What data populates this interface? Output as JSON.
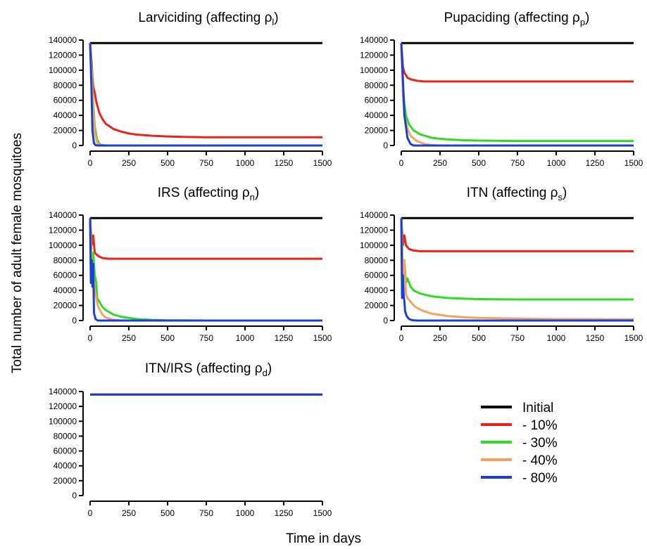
{
  "figure": {
    "ylabel": "Total number of adult female mosquitoes",
    "xlabel": "Time in days"
  },
  "legend": {
    "entries": [
      {
        "label": "Initial",
        "color": "#000000"
      },
      {
        "label": "- 10%",
        "color": "#e8241b"
      },
      {
        "label": "- 30%",
        "color": "#2fd926"
      },
      {
        "label": "- 40%",
        "color": "#f5a25e"
      },
      {
        "label": "- 80%",
        "color": "#1940d6"
      }
    ]
  },
  "chart_data": [
    {
      "type": "line",
      "title_main": "Larviciding (affecting ρ",
      "title_sub": "l",
      "title_end": ")",
      "xlim": [
        0,
        1500
      ],
      "ylim": [
        0,
        140000
      ],
      "xticks": [
        0,
        250,
        500,
        750,
        1000,
        1250,
        1500
      ],
      "yticks": [
        0,
        20000,
        40000,
        60000,
        80000,
        100000,
        120000,
        140000
      ],
      "series": [
        {
          "name": "Initial",
          "color": "#000000",
          "x": [
            0,
            1500
          ],
          "y": [
            136000,
            136000
          ]
        },
        {
          "name": "- 10%",
          "color": "#e8241b",
          "x": [
            0,
            10,
            15,
            20,
            30,
            40,
            60,
            80,
            100,
            150,
            200,
            250,
            300,
            400,
            500,
            600,
            750,
            900,
            1000,
            1250,
            1500
          ],
          "y": [
            136000,
            110000,
            90000,
            78000,
            70000,
            58000,
            43000,
            35000,
            29000,
            22000,
            18500,
            16000,
            14500,
            13000,
            12000,
            11500,
            11000,
            11000,
            11000,
            11000,
            11000
          ]
        },
        {
          "name": "- 30%",
          "color": "#2fd926",
          "x": [
            0,
            10,
            20,
            30,
            45,
            60,
            80,
            100,
            1500
          ],
          "y": [
            136000,
            100000,
            55000,
            25000,
            8000,
            2000,
            500,
            0,
            0
          ]
        },
        {
          "name": "- 40%",
          "color": "#f5a25e",
          "x": [
            0,
            10,
            20,
            30,
            45,
            60,
            80,
            1500
          ],
          "y": [
            136000,
            95000,
            45000,
            18000,
            4000,
            800,
            0,
            0
          ]
        },
        {
          "name": "- 80%",
          "color": "#1940d6",
          "x": [
            0,
            8,
            15,
            25,
            35,
            50,
            1500
          ],
          "y": [
            136000,
            80000,
            20000,
            3000,
            500,
            0,
            0
          ]
        }
      ]
    },
    {
      "type": "line",
      "title_main": "Pupaciding (affecting ρ",
      "title_sub": "p",
      "title_end": ")",
      "xlim": [
        0,
        1500
      ],
      "ylim": [
        0,
        140000
      ],
      "xticks": [
        0,
        250,
        500,
        750,
        1000,
        1250,
        1500
      ],
      "yticks": [
        0,
        20000,
        40000,
        60000,
        80000,
        100000,
        120000,
        140000
      ],
      "series": [
        {
          "name": "Initial",
          "color": "#000000",
          "x": [
            0,
            1500
          ],
          "y": [
            136000,
            136000
          ]
        },
        {
          "name": "- 10%",
          "color": "#e8241b",
          "x": [
            0,
            10,
            20,
            40,
            60,
            100,
            150,
            200,
            250,
            500,
            1000,
            1500
          ],
          "y": [
            136000,
            105000,
            97000,
            90000,
            88000,
            86000,
            85000,
            85000,
            85000,
            85000,
            85000,
            85000
          ]
        },
        {
          "name": "- 30%",
          "color": "#2fd926",
          "x": [
            0,
            10,
            20,
            30,
            50,
            80,
            120,
            200,
            300,
            400,
            500,
            750,
            1000,
            1250,
            1500
          ],
          "y": [
            136000,
            80000,
            55000,
            40000,
            28000,
            20000,
            15000,
            10000,
            8000,
            7000,
            6500,
            6000,
            6000,
            6000,
            6000
          ]
        },
        {
          "name": "- 40%",
          "color": "#f5a25e",
          "x": [
            0,
            10,
            20,
            40,
            60,
            100,
            150,
            200,
            250,
            1500
          ],
          "y": [
            136000,
            70000,
            40000,
            22000,
            13000,
            6000,
            2000,
            500,
            0,
            0
          ]
        },
        {
          "name": "- 80%",
          "color": "#1940d6",
          "x": [
            0,
            10,
            20,
            40,
            60,
            80,
            1500
          ],
          "y": [
            136000,
            90000,
            40000,
            10000,
            2000,
            0,
            0
          ]
        }
      ]
    },
    {
      "type": "line",
      "title_main": "IRS (affecting ρ",
      "title_sub": "n",
      "title_end": ")",
      "xlim": [
        0,
        1500
      ],
      "ylim": [
        0,
        140000
      ],
      "xticks": [
        0,
        250,
        500,
        750,
        1000,
        1250,
        1500
      ],
      "yticks": [
        0,
        20000,
        40000,
        60000,
        80000,
        100000,
        120000,
        140000
      ],
      "series": [
        {
          "name": "Initial",
          "color": "#000000",
          "x": [
            0,
            1500
          ],
          "y": [
            136000,
            136000
          ]
        },
        {
          "name": "- 10%",
          "color": "#e8241b",
          "x": [
            0,
            10,
            20,
            30,
            50,
            80,
            120,
            200,
            1500
          ],
          "y": [
            136000,
            100000,
            113000,
            90000,
            86000,
            83000,
            82000,
            82000,
            82000
          ]
        },
        {
          "name": "- 30%",
          "color": "#2fd926",
          "x": [
            0,
            10,
            20,
            30,
            40,
            45,
            60,
            80,
            100,
            150,
            200,
            300,
            400,
            500,
            750,
            1500
          ],
          "y": [
            136000,
            80000,
            90000,
            60000,
            50000,
            30000,
            25000,
            18000,
            14000,
            8000,
            5000,
            2000,
            800,
            300,
            0,
            0
          ]
        },
        {
          "name": "- 40%",
          "color": "#f5a25e",
          "x": [
            0,
            10,
            20,
            30,
            40,
            50,
            60,
            80,
            100,
            150,
            200,
            1500
          ],
          "y": [
            136000,
            70000,
            60000,
            40000,
            30000,
            20000,
            15000,
            8000,
            4000,
            1000,
            0,
            0
          ]
        },
        {
          "name": "- 80%",
          "color": "#1940d6",
          "x": [
            0,
            5,
            10,
            15,
            20,
            25,
            35,
            50,
            1500
          ],
          "y": [
            136000,
            50000,
            80000,
            45000,
            75000,
            10000,
            2000,
            0,
            0
          ]
        }
      ]
    },
    {
      "type": "line",
      "title_main": "ITN (affecting ρ",
      "title_sub": "s",
      "title_end": ")",
      "xlim": [
        0,
        1500
      ],
      "ylim": [
        0,
        140000
      ],
      "xticks": [
        0,
        250,
        500,
        750,
        1000,
        1250,
        1500
      ],
      "yticks": [
        0,
        20000,
        40000,
        60000,
        80000,
        100000,
        120000,
        140000
      ],
      "series": [
        {
          "name": "Initial",
          "color": "#000000",
          "x": [
            0,
            1500
          ],
          "y": [
            136000,
            136000
          ]
        },
        {
          "name": "- 10%",
          "color": "#e8241b",
          "x": [
            0,
            10,
            20,
            30,
            50,
            80,
            120,
            200,
            1500
          ],
          "y": [
            136000,
            100000,
            113000,
            100000,
            95000,
            93000,
            92000,
            92000,
            92000
          ]
        },
        {
          "name": "- 30%",
          "color": "#2fd926",
          "x": [
            0,
            10,
            20,
            30,
            40,
            60,
            80,
            120,
            200,
            300,
            400,
            500,
            750,
            1500
          ],
          "y": [
            136000,
            70000,
            80000,
            50000,
            56000,
            45000,
            40000,
            36000,
            32000,
            30000,
            29000,
            28500,
            28000,
            28000
          ]
        },
        {
          "name": "- 40%",
          "color": "#f5a25e",
          "x": [
            0,
            10,
            20,
            30,
            40,
            60,
            80,
            100,
            150,
            200,
            300,
            400,
            500,
            750,
            1000,
            1250,
            1500
          ],
          "y": [
            136000,
            50000,
            80000,
            35000,
            30000,
            25000,
            20000,
            17000,
            12000,
            9000,
            6000,
            4500,
            3500,
            2500,
            2000,
            1800,
            1500
          ]
        },
        {
          "name": "- 80%",
          "color": "#1940d6",
          "x": [
            0,
            5,
            10,
            15,
            20,
            25,
            35,
            50,
            70,
            100,
            1500
          ],
          "y": [
            136000,
            30000,
            60000,
            35000,
            25000,
            12000,
            6000,
            2000,
            500,
            0,
            0
          ]
        }
      ]
    },
    {
      "type": "line",
      "title_main": "ITN/IRS (affecting ρ",
      "title_sub": "d",
      "title_end": ")",
      "xlim": [
        0,
        1500
      ],
      "ylim": [
        0,
        140000
      ],
      "xticks": [
        0,
        250,
        500,
        750,
        1000,
        1250,
        1500
      ],
      "yticks": [
        0,
        20000,
        40000,
        60000,
        80000,
        100000,
        120000,
        140000
      ],
      "series": [
        {
          "name": "Initial",
          "color": "#000000",
          "x": [
            0,
            1500
          ],
          "y": [
            136000,
            136000
          ]
        },
        {
          "name": "- 10%",
          "color": "#e8241b",
          "x": [
            0,
            1500
          ],
          "y": [
            136000,
            136000
          ]
        },
        {
          "name": "- 30%",
          "color": "#2fd926",
          "x": [
            0,
            1500
          ],
          "y": [
            136000,
            136000
          ]
        },
        {
          "name": "- 40%",
          "color": "#f5a25e",
          "x": [
            0,
            1500
          ],
          "y": [
            136000,
            136000
          ]
        },
        {
          "name": "- 80%",
          "color": "#1940d6",
          "x": [
            0,
            1500
          ],
          "y": [
            136000,
            136000
          ]
        }
      ]
    }
  ]
}
